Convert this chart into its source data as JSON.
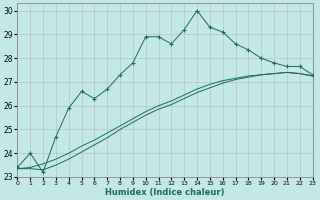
{
  "xlabel": "Humidex (Indice chaleur)",
  "bg_color": "#c2e8e8",
  "grid_color": "#b0b0b0",
  "line_color": "#1a6b5a",
  "xlim": [
    0,
    23
  ],
  "ylim": [
    23,
    30.3
  ],
  "yticks": [
    23,
    24,
    25,
    26,
    27,
    28,
    29,
    30
  ],
  "xticks": [
    0,
    1,
    2,
    3,
    4,
    5,
    6,
    7,
    8,
    9,
    10,
    11,
    12,
    13,
    14,
    15,
    16,
    17,
    18,
    19,
    20,
    21,
    22,
    23
  ],
  "series1_x": [
    0,
    1,
    2,
    3,
    4,
    5,
    6,
    7,
    8,
    9,
    10,
    11,
    12,
    13,
    14,
    15,
    16,
    17,
    18,
    19,
    20,
    21,
    22,
    23
  ],
  "series1_y": [
    23.4,
    24.0,
    23.2,
    24.7,
    25.9,
    26.6,
    26.3,
    26.7,
    27.3,
    27.8,
    28.9,
    28.9,
    28.6,
    29.2,
    30.0,
    29.3,
    29.1,
    28.6,
    28.35,
    28.0,
    27.8,
    27.65,
    27.65,
    27.3
  ],
  "series2_x": [
    0,
    1,
    2,
    3,
    4,
    5,
    6,
    7,
    8,
    9,
    10,
    11,
    12,
    13,
    14,
    15,
    16,
    17,
    18,
    19,
    20,
    21,
    22,
    23
  ],
  "series2_y": [
    23.35,
    23.35,
    23.3,
    23.5,
    23.75,
    24.05,
    24.35,
    24.65,
    25.0,
    25.3,
    25.6,
    25.85,
    26.05,
    26.3,
    26.55,
    26.75,
    26.95,
    27.1,
    27.2,
    27.3,
    27.35,
    27.4,
    27.35,
    27.25
  ],
  "series3_x": [
    0,
    1,
    2,
    3,
    4,
    5,
    6,
    7,
    8,
    9,
    10,
    11,
    12,
    13,
    14,
    15,
    16,
    17,
    18,
    19,
    20,
    21,
    22,
    23
  ],
  "series3_y": [
    23.35,
    23.4,
    23.55,
    23.75,
    24.0,
    24.3,
    24.55,
    24.85,
    25.15,
    25.45,
    25.75,
    26.0,
    26.2,
    26.45,
    26.7,
    26.9,
    27.05,
    27.15,
    27.25,
    27.3,
    27.35,
    27.4,
    27.35,
    27.25
  ]
}
